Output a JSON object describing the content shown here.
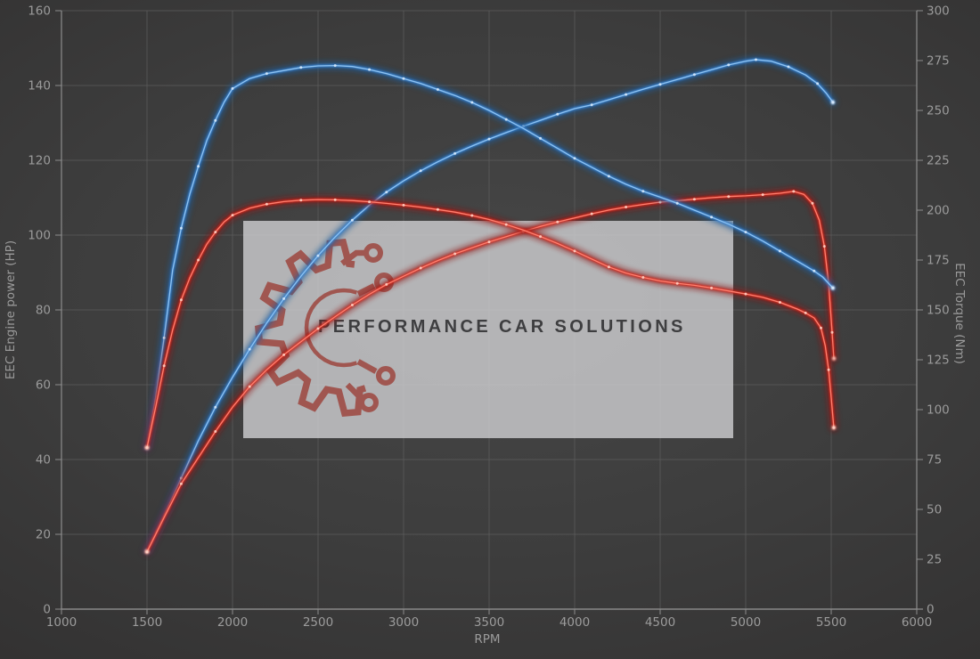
{
  "theme": {
    "background_center": "#474747",
    "background_edge": "#333232",
    "grid": "#5c5c5c",
    "axis": "#8d8d8d",
    "text": "#9b9b9b",
    "watermark_bg": "rgba(212,212,214,0.78)",
    "logo": "#9c4038",
    "brand_text": "#3e3e40"
  },
  "watermark": {
    "brand": "PERFORMANCE CAR SOLUTIONS"
  },
  "chart_data": {
    "type": "line",
    "title": "",
    "xlabel": "RPM",
    "ylabel_left": "EEC Engine power (HP)",
    "ylabel_right": "EEC Torque (Nm)",
    "x_range": [
      1000,
      6000
    ],
    "y_left_range": [
      0,
      160
    ],
    "y_right_range": [
      0,
      300
    ],
    "grid": true,
    "legend_position": "none",
    "x_ticks": [
      1000,
      1500,
      2000,
      2500,
      3000,
      3500,
      4000,
      4500,
      5000,
      5500,
      6000
    ],
    "y_left_ticks": [
      0,
      20,
      40,
      60,
      80,
      100,
      120,
      140,
      160
    ],
    "y_right_ticks": [
      0,
      25,
      50,
      75,
      100,
      125,
      150,
      175,
      200,
      225,
      250,
      275,
      300
    ],
    "colors": {
      "blue": {
        "glow": "#1e5d9e",
        "mid": "#3c87d8",
        "core": "#8ec3f2",
        "dot": "#d8eafc"
      },
      "red": {
        "glow": "#8e1713",
        "mid": "#dd2a1c",
        "core": "#ff8070",
        "dot": "#ffd2c6"
      }
    },
    "series": [
      {
        "name": "power-blue",
        "unit": "HP",
        "axis": "left",
        "color_key": "blue",
        "points": [
          [
            1500,
            15.5
          ],
          [
            1600,
            25
          ],
          [
            1700,
            35
          ],
          [
            1800,
            45
          ],
          [
            1900,
            54
          ],
          [
            2000,
            62
          ],
          [
            2100,
            69.5
          ],
          [
            2200,
            76.5
          ],
          [
            2300,
            83
          ],
          [
            2400,
            89
          ],
          [
            2500,
            94.5
          ],
          [
            2600,
            99.5
          ],
          [
            2700,
            104
          ],
          [
            2800,
            108
          ],
          [
            2900,
            111.5
          ],
          [
            3000,
            114.5
          ],
          [
            3100,
            117.2
          ],
          [
            3200,
            119.6
          ],
          [
            3300,
            121.8
          ],
          [
            3400,
            123.8
          ],
          [
            3500,
            125.7
          ],
          [
            3600,
            127.4
          ],
          [
            3700,
            129.1
          ],
          [
            3800,
            130.7
          ],
          [
            3900,
            132.3
          ],
          [
            4000,
            133.8
          ],
          [
            4100,
            134.8
          ],
          [
            4200,
            136.2
          ],
          [
            4300,
            137.6
          ],
          [
            4400,
            139
          ],
          [
            4500,
            140.3
          ],
          [
            4600,
            141.6
          ],
          [
            4700,
            142.9
          ],
          [
            4800,
            144.2
          ],
          [
            4900,
            145.5
          ],
          [
            5000,
            146.5
          ],
          [
            5060,
            146.9
          ],
          [
            5150,
            146.5
          ],
          [
            5250,
            145
          ],
          [
            5350,
            142.8
          ],
          [
            5420,
            140.5
          ],
          [
            5470,
            138
          ],
          [
            5510,
            135.5
          ]
        ]
      },
      {
        "name": "power-red",
        "unit": "HP",
        "axis": "left",
        "color_key": "red",
        "points": [
          [
            1500,
            15.3
          ],
          [
            1600,
            24.5
          ],
          [
            1700,
            33.5
          ],
          [
            1800,
            40.5
          ],
          [
            1900,
            47.5
          ],
          [
            2000,
            54
          ],
          [
            2100,
            59.5
          ],
          [
            2200,
            64
          ],
          [
            2300,
            68
          ],
          [
            2400,
            71.5
          ],
          [
            2500,
            75
          ],
          [
            2600,
            78.2
          ],
          [
            2700,
            81.3
          ],
          [
            2800,
            84.2
          ],
          [
            2900,
            86.8
          ],
          [
            3000,
            89
          ],
          [
            3100,
            91.2
          ],
          [
            3200,
            93.2
          ],
          [
            3300,
            95
          ],
          [
            3400,
            96.6
          ],
          [
            3500,
            98.2
          ],
          [
            3600,
            99.6
          ],
          [
            3700,
            101
          ],
          [
            3800,
            102.3
          ],
          [
            3900,
            103.5
          ],
          [
            4000,
            104.6
          ],
          [
            4100,
            105.7
          ],
          [
            4200,
            106.7
          ],
          [
            4300,
            107.5
          ],
          [
            4400,
            108.2
          ],
          [
            4500,
            108.8
          ],
          [
            4600,
            109.2
          ],
          [
            4700,
            109.6
          ],
          [
            4800,
            110
          ],
          [
            4900,
            110.3
          ],
          [
            5000,
            110.5
          ],
          [
            5100,
            110.8
          ],
          [
            5200,
            111.2
          ],
          [
            5280,
            111.7
          ],
          [
            5340,
            110.9
          ],
          [
            5390,
            108.5
          ],
          [
            5430,
            104
          ],
          [
            5460,
            97
          ],
          [
            5485,
            87
          ],
          [
            5505,
            74
          ],
          [
            5515,
            67
          ]
        ]
      },
      {
        "name": "torque-blue",
        "unit": "Nm",
        "axis": "right",
        "color_key": "blue",
        "points": [
          [
            1500,
            81
          ],
          [
            1550,
            106
          ],
          [
            1600,
            136
          ],
          [
            1650,
            170
          ],
          [
            1700,
            191
          ],
          [
            1750,
            208
          ],
          [
            1800,
            222
          ],
          [
            1850,
            235
          ],
          [
            1900,
            245
          ],
          [
            1950,
            254
          ],
          [
            2000,
            261
          ],
          [
            2100,
            266
          ],
          [
            2200,
            268.5
          ],
          [
            2300,
            270
          ],
          [
            2400,
            271.5
          ],
          [
            2500,
            272.3
          ],
          [
            2600,
            272.5
          ],
          [
            2700,
            272
          ],
          [
            2800,
            270.5
          ],
          [
            2900,
            268.5
          ],
          [
            3000,
            266
          ],
          [
            3100,
            263.5
          ],
          [
            3200,
            260.5
          ],
          [
            3300,
            257.5
          ],
          [
            3400,
            254
          ],
          [
            3500,
            250
          ],
          [
            3600,
            245.5
          ],
          [
            3700,
            241
          ],
          [
            3800,
            236
          ],
          [
            3900,
            231
          ],
          [
            4000,
            226
          ],
          [
            4100,
            221.5
          ],
          [
            4200,
            217
          ],
          [
            4300,
            213
          ],
          [
            4400,
            209.5
          ],
          [
            4500,
            206.5
          ],
          [
            4600,
            203.5
          ],
          [
            4700,
            200
          ],
          [
            4800,
            196.5
          ],
          [
            4900,
            193
          ],
          [
            5000,
            189
          ],
          [
            5100,
            184.5
          ],
          [
            5200,
            179.5
          ],
          [
            5300,
            174.5
          ],
          [
            5400,
            169.5
          ],
          [
            5450,
            166.5
          ],
          [
            5510,
            161
          ]
        ]
      },
      {
        "name": "torque-red",
        "unit": "Nm",
        "axis": "right",
        "color_key": "red",
        "points": [
          [
            1500,
            81
          ],
          [
            1550,
            101
          ],
          [
            1600,
            122
          ],
          [
            1650,
            140
          ],
          [
            1700,
            155
          ],
          [
            1750,
            166
          ],
          [
            1800,
            175
          ],
          [
            1850,
            183
          ],
          [
            1900,
            189
          ],
          [
            1950,
            194
          ],
          [
            2000,
            197.5
          ],
          [
            2100,
            201
          ],
          [
            2200,
            203
          ],
          [
            2300,
            204.3
          ],
          [
            2400,
            205
          ],
          [
            2500,
            205.3
          ],
          [
            2600,
            205.2
          ],
          [
            2700,
            204.8
          ],
          [
            2800,
            204.2
          ],
          [
            2900,
            203.4
          ],
          [
            3000,
            202.5
          ],
          [
            3100,
            201.5
          ],
          [
            3200,
            200.3
          ],
          [
            3300,
            199
          ],
          [
            3400,
            197.3
          ],
          [
            3500,
            195.3
          ],
          [
            3600,
            192.8
          ],
          [
            3700,
            190
          ],
          [
            3800,
            186.8
          ],
          [
            3900,
            183.3
          ],
          [
            4000,
            179.5
          ],
          [
            4100,
            175.5
          ],
          [
            4200,
            171.5
          ],
          [
            4300,
            168.5
          ],
          [
            4400,
            166.3
          ],
          [
            4500,
            164.5
          ],
          [
            4600,
            163.3
          ],
          [
            4700,
            162.3
          ],
          [
            4800,
            161
          ],
          [
            4900,
            159.5
          ],
          [
            5000,
            158
          ],
          [
            5100,
            156.3
          ],
          [
            5200,
            153.8
          ],
          [
            5300,
            150.5
          ],
          [
            5350,
            148.5
          ],
          [
            5400,
            146
          ],
          [
            5440,
            141
          ],
          [
            5465,
            132
          ],
          [
            5485,
            120
          ],
          [
            5500,
            106
          ],
          [
            5515,
            91
          ]
        ]
      }
    ]
  }
}
